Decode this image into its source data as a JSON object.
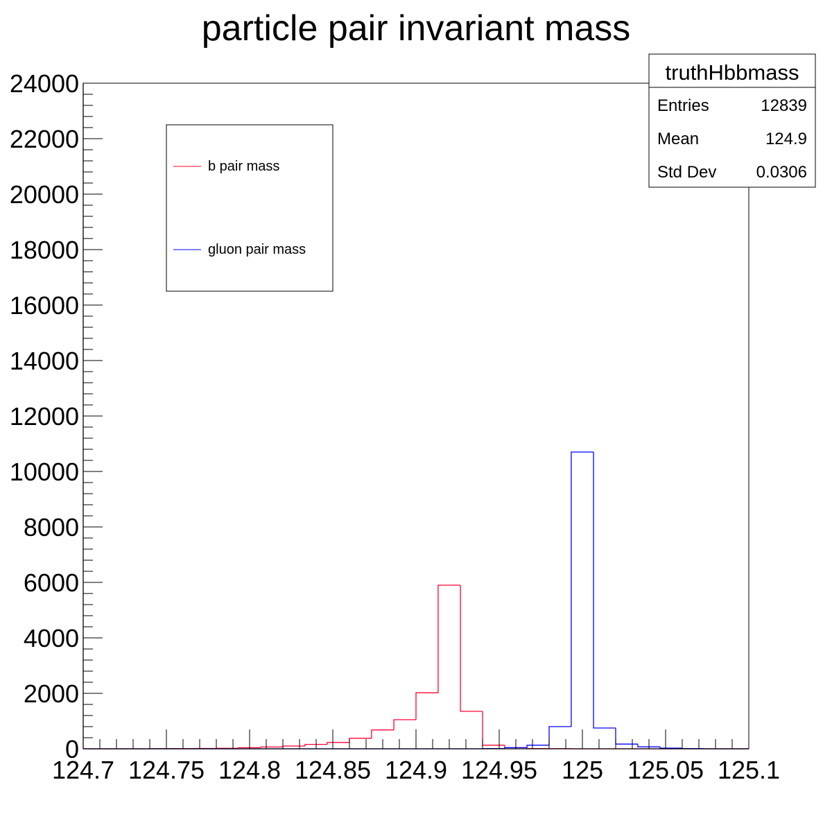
{
  "chart_data": {
    "type": "histogram",
    "title": "particle pair invariant mass",
    "xlabel": "",
    "ylabel": "",
    "xlim": [
      124.7,
      125.1
    ],
    "ylim": [
      0,
      24000
    ],
    "x_ticks": [
      "124.7",
      "124.75",
      "124.8",
      "124.85",
      "124.9",
      "124.95",
      "125",
      "125.05",
      "125.1"
    ],
    "x_tick_values": [
      124.7,
      124.75,
      124.8,
      124.85,
      124.9,
      124.95,
      125.0,
      125.05,
      125.1
    ],
    "y_ticks": [
      "0",
      "2000",
      "4000",
      "6000",
      "8000",
      "10000",
      "12000",
      "14000",
      "16000",
      "18000",
      "20000",
      "22000",
      "24000"
    ],
    "y_tick_values": [
      0,
      2000,
      4000,
      6000,
      8000,
      10000,
      12000,
      14000,
      16000,
      18000,
      20000,
      22000,
      24000
    ],
    "bin_edges": [
      124.7,
      124.7133,
      124.7267,
      124.74,
      124.7533,
      124.7667,
      124.78,
      124.7933,
      124.8067,
      124.82,
      124.8333,
      124.8467,
      124.86,
      124.8733,
      124.8867,
      124.9,
      124.9133,
      124.9267,
      124.94,
      124.9533,
      124.9667,
      124.98,
      124.9933,
      125.0067,
      125.02,
      125.0333,
      125.0467,
      125.06,
      125.0733,
      125.0867,
      125.1
    ],
    "grid": false,
    "legend": {
      "position": "top-left",
      "entries": [
        {
          "label": "b pair mass",
          "color": "#ff0033"
        },
        {
          "label": "gluon pair mass",
          "color": "#0000ff"
        }
      ]
    },
    "stats_box": {
      "title": "truthHbbmass",
      "rows": [
        {
          "label": "Entries",
          "value": "12839"
        },
        {
          "label": "Mean",
          "value": "124.9"
        },
        {
          "label": "Std Dev",
          "value": "0.0306"
        }
      ]
    },
    "series": [
      {
        "name": "b pair mass",
        "color": "#ff0033",
        "values": [
          0,
          0,
          0,
          5,
          8,
          12,
          18,
          40,
          65,
          100,
          160,
          230,
          380,
          680,
          1050,
          2020,
          5900,
          1350,
          130,
          40,
          10,
          5,
          0,
          0,
          0,
          0,
          0,
          0,
          0,
          0
        ]
      },
      {
        "name": "gluon pair mass",
        "color": "#0000ff",
        "values": [
          0,
          0,
          0,
          0,
          0,
          0,
          0,
          0,
          0,
          0,
          0,
          0,
          0,
          0,
          0,
          0,
          0,
          0,
          10,
          40,
          130,
          800,
          10700,
          750,
          170,
          70,
          25,
          10,
          0,
          0
        ]
      }
    ]
  }
}
